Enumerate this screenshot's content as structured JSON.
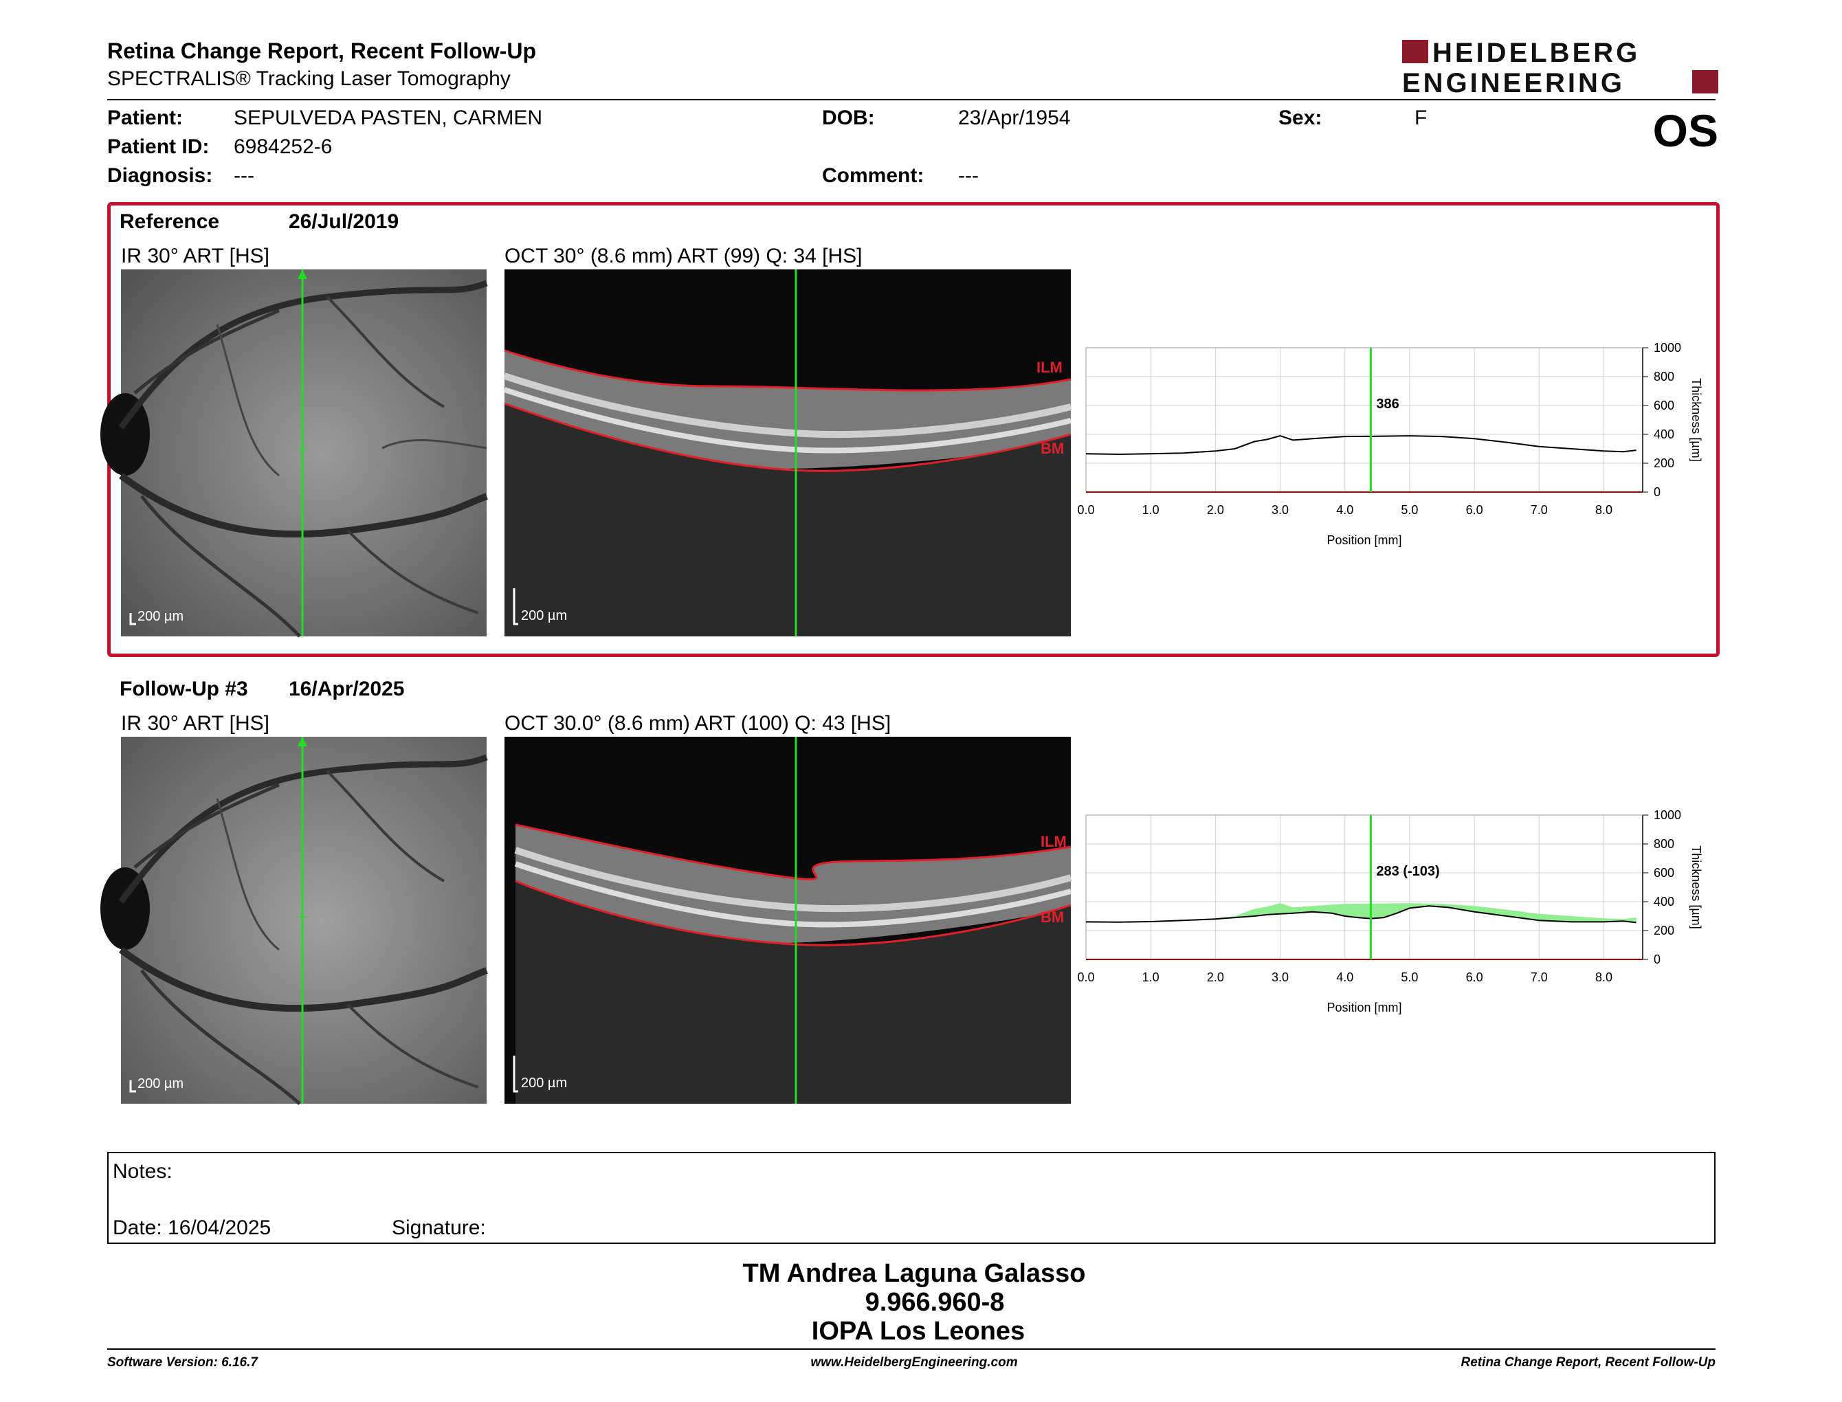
{
  "report": {
    "title": "Retina Change Report, Recent Follow-Up",
    "subtitle": "SPECTRALIS® Tracking Laser Tomography",
    "logo_line1": "HEIDELBERG",
    "logo_line2": "ENGINEERING",
    "eye": "OS"
  },
  "patient": {
    "patient_label": "Patient:",
    "patient_value": "SEPULVEDA PASTEN, CARMEN",
    "id_label": "Patient ID:",
    "id_value": "6984252-6",
    "diagnosis_label": "Diagnosis:",
    "diagnosis_value": "---",
    "dob_label": "DOB:",
    "dob_value": "23/Apr/1954",
    "comment_label": "Comment:",
    "comment_value": "---",
    "sex_label": "Sex:",
    "sex_value": "F"
  },
  "reference": {
    "label": "Reference",
    "date": "26/Jul/2019",
    "ir_label": "IR 30° ART [HS]",
    "oct_label": "OCT 30° (8.6 mm) ART (99) Q: 34 [HS]",
    "scale_ir": "200 µm",
    "scale_oct": "200 µm",
    "ilm": "ILM",
    "bm": "BM"
  },
  "followup": {
    "label": "Follow-Up #3",
    "date": "16/Apr/2025",
    "ir_label": "IR 30° ART [HS]",
    "oct_label": "OCT 30.0° (8.6 mm) ART (100) Q: 43 [HS]",
    "scale_ir": "200 µm",
    "scale_oct": "200 µm",
    "ilm": "ILM",
    "bm": "BM"
  },
  "chart_data": [
    {
      "type": "line",
      "xlabel": "Position [mm]",
      "ylabel": "Thickness [µm]",
      "xlim": [
        0,
        8.6
      ],
      "ylim": [
        0,
        1000
      ],
      "xticks": [
        "0.0",
        "1.0",
        "2.0",
        "3.0",
        "4.0",
        "5.0",
        "6.0",
        "7.0",
        "8.0"
      ],
      "yticks": [
        "0",
        "200",
        "400",
        "600",
        "800",
        "1000"
      ],
      "cursor_x": 4.4,
      "cursor_label": "386",
      "series": [
        {
          "x": [
            0,
            0.5,
            1,
            1.5,
            2,
            2.3,
            2.6,
            2.8,
            3.0,
            3.1,
            3.2,
            3.5,
            4.0,
            4.4,
            5.0,
            5.5,
            6.0,
            6.5,
            7.0,
            7.5,
            8.0,
            8.3,
            8.5
          ],
          "values": [
            265,
            262,
            265,
            270,
            285,
            300,
            350,
            365,
            390,
            375,
            360,
            370,
            385,
            386,
            390,
            385,
            370,
            345,
            315,
            300,
            285,
            280,
            290
          ]
        }
      ]
    },
    {
      "type": "area",
      "xlabel": "Position [mm]",
      "ylabel": "Thickness [µm]",
      "xlim": [
        0,
        8.6
      ],
      "ylim": [
        0,
        1000
      ],
      "xticks": [
        "0.0",
        "1.0",
        "2.0",
        "3.0",
        "4.0",
        "5.0",
        "6.0",
        "7.0",
        "8.0"
      ],
      "yticks": [
        "0",
        "200",
        "400",
        "600",
        "800",
        "1000"
      ],
      "cursor_x": 4.4,
      "cursor_label": "283 (-103)",
      "fill_color": "#90ee90",
      "series": [
        {
          "x": [
            0,
            0.5,
            1,
            1.5,
            2,
            2.3,
            2.6,
            2.8,
            3.0,
            3.1,
            3.2,
            3.5,
            4.0,
            4.4,
            5.0,
            5.5,
            6.0,
            6.5,
            7.0,
            7.5,
            8.0,
            8.3,
            8.5
          ],
          "values": [
            265,
            262,
            265,
            270,
            285,
            300,
            350,
            365,
            390,
            375,
            360,
            370,
            385,
            386,
            390,
            385,
            370,
            345,
            315,
            300,
            285,
            280,
            290
          ]
        },
        {
          "x": [
            0,
            0.5,
            1,
            1.5,
            2,
            2.3,
            2.6,
            2.8,
            3.0,
            3.2,
            3.5,
            3.8,
            4.0,
            4.2,
            4.4,
            4.6,
            4.8,
            5.0,
            5.3,
            5.6,
            6.0,
            6.5,
            7.0,
            7.5,
            8.0,
            8.3,
            8.5
          ],
          "values": [
            260,
            258,
            262,
            270,
            280,
            290,
            300,
            310,
            315,
            320,
            330,
            320,
            300,
            290,
            283,
            290,
            320,
            355,
            370,
            360,
            330,
            300,
            270,
            260,
            260,
            265,
            255
          ]
        }
      ]
    }
  ],
  "notes": {
    "label": "Notes:",
    "date_label": "Date: 16/04/2025",
    "signature_label": "Signature:"
  },
  "signer": {
    "name": "TM Andrea Laguna Galasso",
    "id": "9.966.960-8",
    "institution": "IOPA Los Leones"
  },
  "footer": {
    "software": "Software Version: 6.16.7",
    "website": "www.HeidelbergEngineering.com",
    "report_name": "Retina Change Report, Recent Follow-Up"
  },
  "colors": {
    "accent": "#c8102e",
    "scan_line": "#22dd22",
    "fill": "#90ee90"
  }
}
